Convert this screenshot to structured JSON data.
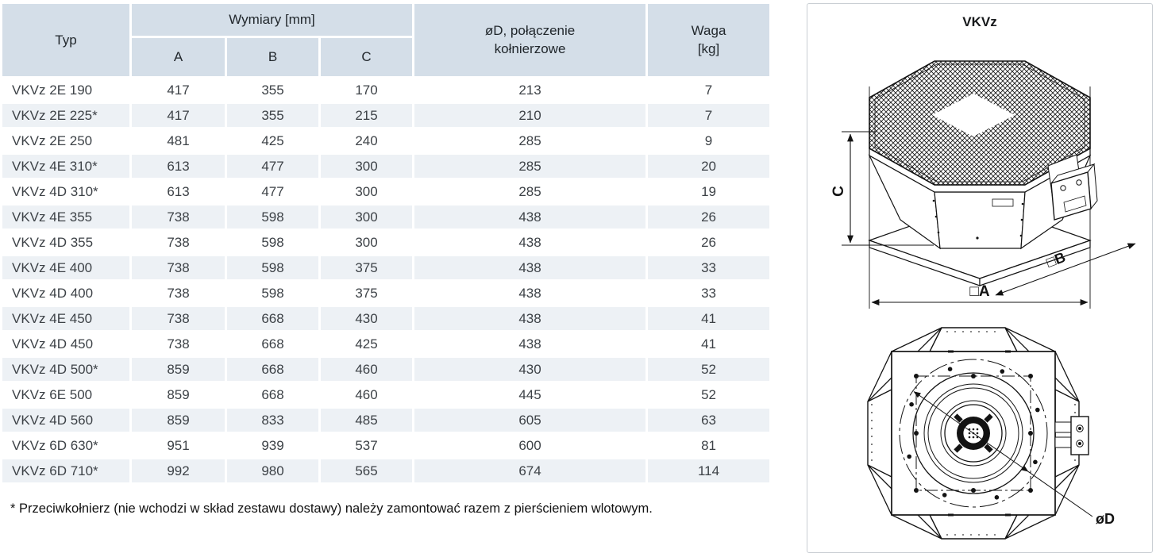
{
  "table": {
    "columns": {
      "typ": "Typ",
      "dimensions_group": "Wymiary [mm]",
      "a": "A",
      "b": "B",
      "c": "C",
      "flange": "øD, połączenie\nkołnierzowe",
      "weight": "Waga\n[kg]"
    },
    "rows": [
      {
        "typ": "VKVz 2E 190",
        "a": "417",
        "b": "355",
        "c": "170",
        "d": "213",
        "waga": "7"
      },
      {
        "typ": "VKVz 2E 225*",
        "a": "417",
        "b": "355",
        "c": "215",
        "d": "210",
        "waga": "7"
      },
      {
        "typ": "VKVz 2E 250",
        "a": "481",
        "b": "425",
        "c": "240",
        "d": "285",
        "waga": "9"
      },
      {
        "typ": "VKVz 4E 310*",
        "a": "613",
        "b": "477",
        "c": "300",
        "d": "285",
        "waga": "20"
      },
      {
        "typ": "VKVz 4D 310*",
        "a": "613",
        "b": "477",
        "c": "300",
        "d": "285",
        "waga": "19"
      },
      {
        "typ": "VKVz 4E 355",
        "a": "738",
        "b": "598",
        "c": "300",
        "d": "438",
        "waga": "26"
      },
      {
        "typ": "VKVz 4D 355",
        "a": "738",
        "b": "598",
        "c": "300",
        "d": "438",
        "waga": "26"
      },
      {
        "typ": "VKVz 4E 400",
        "a": "738",
        "b": "598",
        "c": "375",
        "d": "438",
        "waga": "33"
      },
      {
        "typ": "VKVz 4D 400",
        "a": "738",
        "b": "598",
        "c": "375",
        "d": "438",
        "waga": "33"
      },
      {
        "typ": "VKVz 4E 450",
        "a": "738",
        "b": "668",
        "c": "430",
        "d": "438",
        "waga": "41"
      },
      {
        "typ": "VKVz 4D 450",
        "a": "738",
        "b": "668",
        "c": "425",
        "d": "438",
        "waga": "41"
      },
      {
        "typ": "VKVz 4D 500*",
        "a": "859",
        "b": "668",
        "c": "460",
        "d": "430",
        "waga": "52"
      },
      {
        "typ": "VKVz 6E 500",
        "a": "859",
        "b": "668",
        "c": "460",
        "d": "445",
        "waga": "52"
      },
      {
        "typ": "VKVz 4D 560",
        "a": "859",
        "b": "833",
        "c": "485",
        "d": "605",
        "waga": "63"
      },
      {
        "typ": "VKVz 6D 630*",
        "a": "951",
        "b": "939",
        "c": "537",
        "d": "600",
        "waga": "81"
      },
      {
        "typ": "VKVz 6D 710*",
        "a": "992",
        "b": "980",
        "c": "565",
        "d": "674",
        "waga": "114"
      }
    ],
    "footnote": "* Przeciwkołnierz (nie wchodzi w skład zestawu dostawy) należy zamontować razem z pierścieniem wlotowym."
  },
  "drawing": {
    "title": "VKVz",
    "labels": {
      "height": "C",
      "base_side": "□A",
      "flange_side": "□B",
      "diameter": "øD"
    }
  },
  "colors": {
    "header_bg": "#d4dee8",
    "stripe_bg": "#edf1f5",
    "line": "#131313",
    "text": "#3d4247"
  }
}
